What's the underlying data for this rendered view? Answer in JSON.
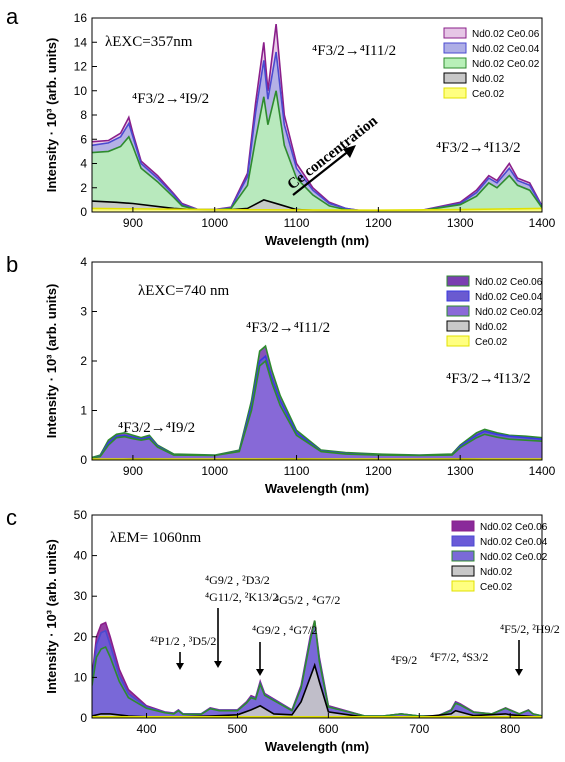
{
  "chart_data": [
    {
      "panel": "a",
      "type": "area",
      "xlabel": "Wavelength (nm)",
      "ylabel": "Intensity · 10³ (arb. units)",
      "xlim": [
        850,
        1400
      ],
      "ylim": [
        0,
        16
      ],
      "xticks": [
        900,
        1000,
        1100,
        1200,
        1300,
        1400
      ],
      "yticks": [
        0,
        2,
        4,
        6,
        8,
        10,
        12,
        14,
        16
      ],
      "excitation": "λEXC=357nm",
      "annotations": [
        "⁴F3/2→⁴I9/2",
        "⁴F3/2→⁴I11/2",
        "⁴F3/2→⁴I13/2",
        "Ce concentration"
      ],
      "legend": [
        "Nd0.02 Ce0.06",
        "Nd0.02 Ce0.04",
        "Nd0.02 Ce0.02",
        "Nd0.02",
        "Ce0.02"
      ],
      "legend_position": "top-right",
      "series": [
        {
          "name": "Nd0.02 Ce0.06",
          "fill": "#e6c6e6",
          "stroke": "#8a1f8a",
          "x": [
            850,
            870,
            885,
            895,
            900,
            910,
            930,
            950,
            960,
            980,
            1000,
            1020,
            1040,
            1050,
            1060,
            1065,
            1075,
            1085,
            1100,
            1120,
            1140,
            1160,
            1180,
            1200,
            1250,
            1300,
            1320,
            1335,
            1345,
            1360,
            1370,
            1385,
            1400
          ],
          "y": [
            5.8,
            5.9,
            6.5,
            7.8,
            6.5,
            4.2,
            3.0,
            1.5,
            0.7,
            0.2,
            0.2,
            0.4,
            3.2,
            9.0,
            14.0,
            10.0,
            15.5,
            8.0,
            4.0,
            2.0,
            0.8,
            0.3,
            0.1,
            0.1,
            0.1,
            0.8,
            1.8,
            3.0,
            2.6,
            4.0,
            2.8,
            2.4,
            0.5
          ]
        },
        {
          "name": "Nd0.02 Ce0.04",
          "fill": "#aeaee6",
          "stroke": "#4a4ad0",
          "x": [
            850,
            870,
            885,
            895,
            900,
            910,
            930,
            950,
            960,
            980,
            1000,
            1020,
            1040,
            1050,
            1060,
            1065,
            1075,
            1085,
            1100,
            1120,
            1140,
            1160,
            1180,
            1200,
            1250,
            1300,
            1320,
            1335,
            1345,
            1360,
            1370,
            1385,
            1400
          ],
          "y": [
            5.5,
            5.7,
            6.2,
            7.3,
            6.2,
            4.0,
            2.8,
            1.4,
            0.6,
            0.2,
            0.2,
            0.35,
            2.9,
            8.2,
            12.5,
            9.3,
            13.2,
            7.2,
            3.6,
            1.8,
            0.7,
            0.3,
            0.1,
            0.1,
            0.1,
            0.7,
            1.6,
            2.8,
            2.4,
            3.6,
            2.6,
            2.2,
            0.45
          ]
        },
        {
          "name": "Nd0.02 Ce0.02",
          "fill": "#b8f0b8",
          "stroke": "#2e8b2e",
          "x": [
            850,
            870,
            885,
            895,
            900,
            910,
            930,
            950,
            960,
            980,
            1000,
            1020,
            1040,
            1050,
            1060,
            1065,
            1075,
            1085,
            1100,
            1120,
            1140,
            1160,
            1180,
            1200,
            1250,
            1300,
            1320,
            1335,
            1345,
            1360,
            1370,
            1385,
            1400
          ],
          "y": [
            4.9,
            5.0,
            5.4,
            6.2,
            5.4,
            3.6,
            2.5,
            1.2,
            0.5,
            0.15,
            0.15,
            0.3,
            2.2,
            6.0,
            9.5,
            7.2,
            10.0,
            5.5,
            2.8,
            1.4,
            0.5,
            0.2,
            0.1,
            0.1,
            0.1,
            0.6,
            1.3,
            2.4,
            2.0,
            3.0,
            2.2,
            1.8,
            0.35
          ]
        },
        {
          "name": "Nd0.02",
          "fill": "#c8c8c8",
          "stroke": "#000000",
          "x": [
            850,
            880,
            900,
            950,
            1000,
            1040,
            1060,
            1080,
            1100,
            1150,
            1200,
            1400
          ],
          "y": [
            0.9,
            0.8,
            0.7,
            0.3,
            0.1,
            0.3,
            1.0,
            0.6,
            0.2,
            0.05,
            0.0,
            0.0
          ]
        },
        {
          "name": "Ce0.02",
          "fill": "#ffff80",
          "stroke": "#e0e000",
          "x": [
            850,
            1000,
            1200,
            1300,
            1400
          ],
          "y": [
            0.3,
            0.2,
            0.15,
            0.2,
            0.3
          ]
        }
      ]
    },
    {
      "panel": "b",
      "type": "area",
      "xlabel": "Wavelength (nm)",
      "ylabel": "Intensity · 10³ (arb. units)",
      "xlim": [
        850,
        1400
      ],
      "ylim": [
        0,
        4
      ],
      "xticks": [
        900,
        1000,
        1100,
        1200,
        1300,
        1400
      ],
      "yticks": [
        0,
        1,
        2,
        3,
        4
      ],
      "excitation": "λEXC=740 nm",
      "annotations": [
        "⁴F3/2→⁴I9/2",
        "⁴F3/2→⁴I11/2",
        "⁴F3/2→⁴I13/2"
      ],
      "legend": [
        "Nd0.02 Ce0.06",
        "Nd0.02 Ce0.04",
        "Nd0.02 Ce0.02",
        "Nd0.02",
        "Ce0.02"
      ],
      "legend_position": "top-right",
      "series": [
        {
          "name": "Nd0.02 Ce0.06",
          "fill": "#7a3fb0",
          "stroke": "#2e8b2e",
          "x": [
            850,
            860,
            870,
            880,
            890,
            900,
            910,
            920,
            930,
            950,
            1000,
            1030,
            1045,
            1055,
            1062,
            1070,
            1080,
            1100,
            1130,
            1160,
            1200,
            1250,
            1290,
            1300,
            1320,
            1330,
            1345,
            1360,
            1380,
            1400
          ],
          "y": [
            0.05,
            0.1,
            0.4,
            0.52,
            0.55,
            0.5,
            0.45,
            0.5,
            0.3,
            0.12,
            0.1,
            0.2,
            1.2,
            2.2,
            2.3,
            1.8,
            1.3,
            0.6,
            0.2,
            0.15,
            0.12,
            0.1,
            0.12,
            0.3,
            0.55,
            0.62,
            0.55,
            0.5,
            0.48,
            0.45
          ]
        },
        {
          "name": "Nd0.02 Ce0.04",
          "fill": "#6a5ad0",
          "stroke": "#3a3ae0",
          "x": [
            850,
            860,
            870,
            880,
            890,
            900,
            910,
            920,
            930,
            950,
            1000,
            1030,
            1045,
            1055,
            1062,
            1070,
            1080,
            1100,
            1130,
            1160,
            1200,
            1250,
            1290,
            1300,
            1320,
            1330,
            1345,
            1360,
            1380,
            1400
          ],
          "y": [
            0.04,
            0.08,
            0.35,
            0.48,
            0.5,
            0.46,
            0.42,
            0.46,
            0.28,
            0.1,
            0.09,
            0.18,
            1.1,
            2.0,
            2.1,
            1.65,
            1.2,
            0.55,
            0.18,
            0.13,
            0.1,
            0.09,
            0.1,
            0.28,
            0.5,
            0.58,
            0.52,
            0.48,
            0.45,
            0.42
          ]
        },
        {
          "name": "Nd0.02 Ce0.02",
          "fill": "#8a6ad8",
          "stroke": "#2e8b2e",
          "x": [
            850,
            860,
            870,
            880,
            890,
            900,
            910,
            920,
            930,
            950,
            1000,
            1030,
            1045,
            1055,
            1062,
            1070,
            1080,
            1100,
            1130,
            1160,
            1200,
            1250,
            1290,
            1300,
            1320,
            1330,
            1345,
            1360,
            1380,
            1400
          ],
          "y": [
            0.04,
            0.07,
            0.3,
            0.45,
            0.47,
            0.43,
            0.4,
            0.43,
            0.26,
            0.1,
            0.09,
            0.17,
            1.0,
            1.9,
            2.0,
            1.55,
            1.1,
            0.5,
            0.17,
            0.12,
            0.1,
            0.09,
            0.1,
            0.25,
            0.45,
            0.52,
            0.46,
            0.42,
            0.4,
            0.38
          ]
        },
        {
          "name": "Nd0.02",
          "fill": "#c8c8c8",
          "stroke": "#000000",
          "x": [
            850,
            900,
            1000,
            1100,
            1200,
            1300,
            1400
          ],
          "y": [
            0.0,
            0.02,
            0.01,
            0.02,
            0.01,
            0.02,
            0.0
          ]
        },
        {
          "name": "Ce0.02",
          "fill": "#ffff80",
          "stroke": "#e0e000",
          "x": [
            850,
            1000,
            1200,
            1400
          ],
          "y": [
            0.02,
            0.02,
            0.02,
            0.02
          ]
        }
      ]
    },
    {
      "panel": "c",
      "type": "area",
      "xlabel": "Wavelength (nm)",
      "ylabel": "Intensity · 10³ (arb. units)",
      "xlim": [
        340,
        835
      ],
      "ylim": [
        0,
        50
      ],
      "xticks": [
        400,
        500,
        600,
        700,
        800
      ],
      "yticks": [
        0,
        10,
        20,
        30,
        40,
        50
      ],
      "excitation": "λEM= 1060nm",
      "annotations": [
        "⁴²P1/2 , ³D5/2",
        "⁴G9/2 , ²D3/2",
        "⁴G11/2, ²K13/2",
        "⁴G9/2 , ⁴G7/2",
        "⁴G5/2 , ⁴G7/2",
        "⁴F9/2",
        "⁴F7/2, ⁴S3/2",
        "⁴F5/2, ²H9/2"
      ],
      "legend": [
        "Nd0.02 Ce0.06",
        "Nd0.02 Ce0.04",
        "Nd0.02 Ce0.02",
        "Nd0.02",
        "Ce0.02"
      ],
      "legend_position": "top-right",
      "series": [
        {
          "name": "Nd0.02 Ce0.06",
          "fill": "#8a2a9a",
          "stroke": "#8a1f8a",
          "x": [
            340,
            345,
            350,
            355,
            360,
            370,
            380,
            400,
            420,
            430,
            435,
            440,
            460,
            470,
            480,
            500,
            510,
            515,
            520,
            525,
            530,
            560,
            570,
            580,
            585,
            590,
            600,
            640,
            660,
            680,
            700,
            720,
            735,
            740,
            745,
            760,
            780,
            795,
            800,
            810,
            820,
            825,
            835
          ],
          "y": [
            10,
            20,
            23,
            23.5,
            20,
            12,
            7,
            3,
            1.5,
            1.2,
            2,
            1,
            1,
            2.5,
            2,
            2,
            4,
            5.5,
            5,
            9,
            6,
            2,
            8,
            20,
            24,
            15,
            3,
            0.5,
            0.5,
            1,
            0.5,
            0.5,
            2,
            4,
            3.5,
            1.5,
            1,
            2.5,
            2,
            1,
            2,
            1,
            0.5
          ]
        },
        {
          "name": "Nd0.02 Ce0.04",
          "fill": "#6a5ad8",
          "stroke": "#4a4ad0",
          "x": [
            340,
            345,
            350,
            355,
            360,
            370,
            380,
            400,
            420,
            430,
            435,
            440,
            460,
            470,
            480,
            500,
            510,
            515,
            520,
            525,
            530,
            560,
            570,
            580,
            585,
            590,
            600,
            640,
            660,
            680,
            700,
            720,
            735,
            740,
            745,
            760,
            780,
            795,
            800,
            810,
            820,
            825,
            835
          ],
          "y": [
            9,
            18,
            21,
            21.5,
            18,
            10.5,
            6,
            2.7,
            1.4,
            1.1,
            1.9,
            1,
            1,
            2.4,
            1.9,
            1.9,
            3.8,
            5.2,
            4.8,
            8.6,
            5.8,
            1.9,
            7.6,
            19.5,
            23.5,
            14.5,
            2.8,
            0.5,
            0.5,
            1,
            0.5,
            0.5,
            1.9,
            3.8,
            3.3,
            1.4,
            1,
            2.4,
            1.9,
            1,
            1.9,
            1,
            0.5
          ]
        },
        {
          "name": "Nd0.02 Ce0.02",
          "fill": "#7a6ad8",
          "stroke": "#2e8b2e",
          "x": [
            340,
            345,
            350,
            355,
            360,
            370,
            380,
            400,
            420,
            430,
            435,
            440,
            460,
            470,
            480,
            500,
            510,
            515,
            520,
            525,
            530,
            560,
            570,
            580,
            585,
            590,
            600,
            640,
            660,
            680,
            700,
            720,
            735,
            740,
            745,
            760,
            780,
            795,
            800,
            810,
            820,
            825,
            835
          ],
          "y": [
            8,
            15,
            17,
            17.5,
            15,
            9,
            5,
            2.4,
            1.3,
            1.0,
            1.8,
            0.9,
            0.9,
            2.3,
            1.8,
            1.8,
            3.7,
            5.0,
            4.6,
            8.3,
            5.6,
            1.8,
            7.4,
            19,
            24,
            14,
            2.7,
            0.5,
            0.5,
            1,
            0.5,
            0.5,
            1.8,
            3.6,
            3.2,
            1.4,
            1,
            2.4,
            1.9,
            1,
            1.9,
            1,
            0.5
          ]
        },
        {
          "name": "Nd0.02",
          "fill": "#c8c8c8",
          "stroke": "#000000",
          "x": [
            340,
            350,
            360,
            380,
            400,
            440,
            470,
            500,
            515,
            525,
            540,
            560,
            570,
            580,
            585,
            590,
            600,
            640,
            700,
            735,
            740,
            760,
            795,
            800,
            835
          ],
          "y": [
            0.5,
            1,
            1,
            0.5,
            0.3,
            0.3,
            0.5,
            0.8,
            2,
            3,
            1,
            0.8,
            4,
            10,
            13,
            9,
            1.5,
            0.2,
            0.2,
            1,
            1.8,
            0.6,
            1,
            0.8,
            0.2
          ]
        },
        {
          "name": "Ce0.02",
          "fill": "#ffff80",
          "stroke": "#e0e000",
          "x": [
            340,
            500,
            700,
            835
          ],
          "y": [
            0.3,
            0.3,
            0.3,
            0.3
          ]
        }
      ]
    }
  ]
}
